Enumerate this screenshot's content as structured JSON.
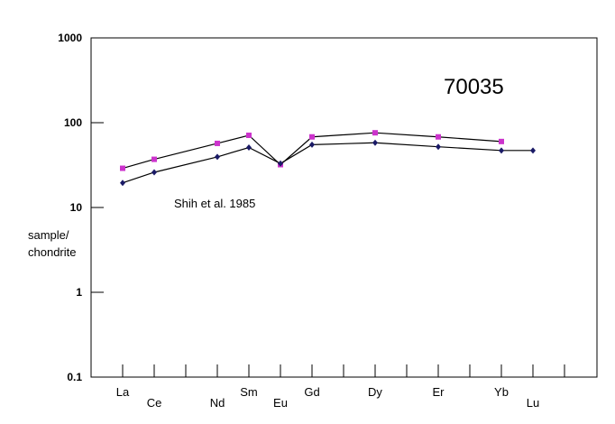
{
  "chart_data": {
    "type": "line",
    "title": "70035",
    "annotation": "Shih et al. 1985",
    "ylabel_lines": [
      "sample/",
      "chondrite"
    ],
    "yscale": "log",
    "ylim": [
      0.1,
      1000
    ],
    "yticks": [
      {
        "value": 1000,
        "label": "1000"
      },
      {
        "value": 100,
        "label": "100"
      },
      {
        "value": 10,
        "label": "10"
      },
      {
        "value": 1,
        "label": "1"
      },
      {
        "value": 0.1,
        "label": "0.1"
      }
    ],
    "x_slots": 15,
    "categories": [
      {
        "label": "La",
        "slot": 0,
        "row": 0
      },
      {
        "label": "Ce",
        "slot": 1,
        "row": 1
      },
      {
        "label": "Nd",
        "slot": 3,
        "row": 1
      },
      {
        "label": "Sm",
        "slot": 4,
        "row": 0
      },
      {
        "label": "Eu",
        "slot": 5,
        "row": 1
      },
      {
        "label": "Gd",
        "slot": 6,
        "row": 0
      },
      {
        "label": "Dy",
        "slot": 8,
        "row": 0
      },
      {
        "label": "Er",
        "slot": 10,
        "row": 0
      },
      {
        "label": "Yb",
        "slot": 12,
        "row": 0
      },
      {
        "label": "Lu",
        "slot": 13,
        "row": 1
      }
    ],
    "series": [
      {
        "color": "#cc33cc",
        "marker": "square",
        "points": [
          {
            "slot": 0,
            "y": 29
          },
          {
            "slot": 1,
            "y": 37
          },
          {
            "slot": 3,
            "y": 57
          },
          {
            "slot": 4,
            "y": 71
          },
          {
            "slot": 5,
            "y": 32
          },
          {
            "slot": 6,
            "y": 68
          },
          {
            "slot": 8,
            "y": 76
          },
          {
            "slot": 10,
            "y": 68
          },
          {
            "slot": 12,
            "y": 60
          }
        ]
      },
      {
        "color": "#1a1a66",
        "marker": "diamond",
        "points": [
          {
            "slot": 0,
            "y": 19.5
          },
          {
            "slot": 1,
            "y": 26
          },
          {
            "slot": 3,
            "y": 39.5
          },
          {
            "slot": 4,
            "y": 51
          },
          {
            "slot": 5,
            "y": 33
          },
          {
            "slot": 6,
            "y": 55
          },
          {
            "slot": 8,
            "y": 58
          },
          {
            "slot": 10,
            "y": 52
          },
          {
            "slot": 12,
            "y": 47
          },
          {
            "slot": 13,
            "y": 47
          }
        ]
      }
    ],
    "grid": false,
    "legend": "none"
  }
}
